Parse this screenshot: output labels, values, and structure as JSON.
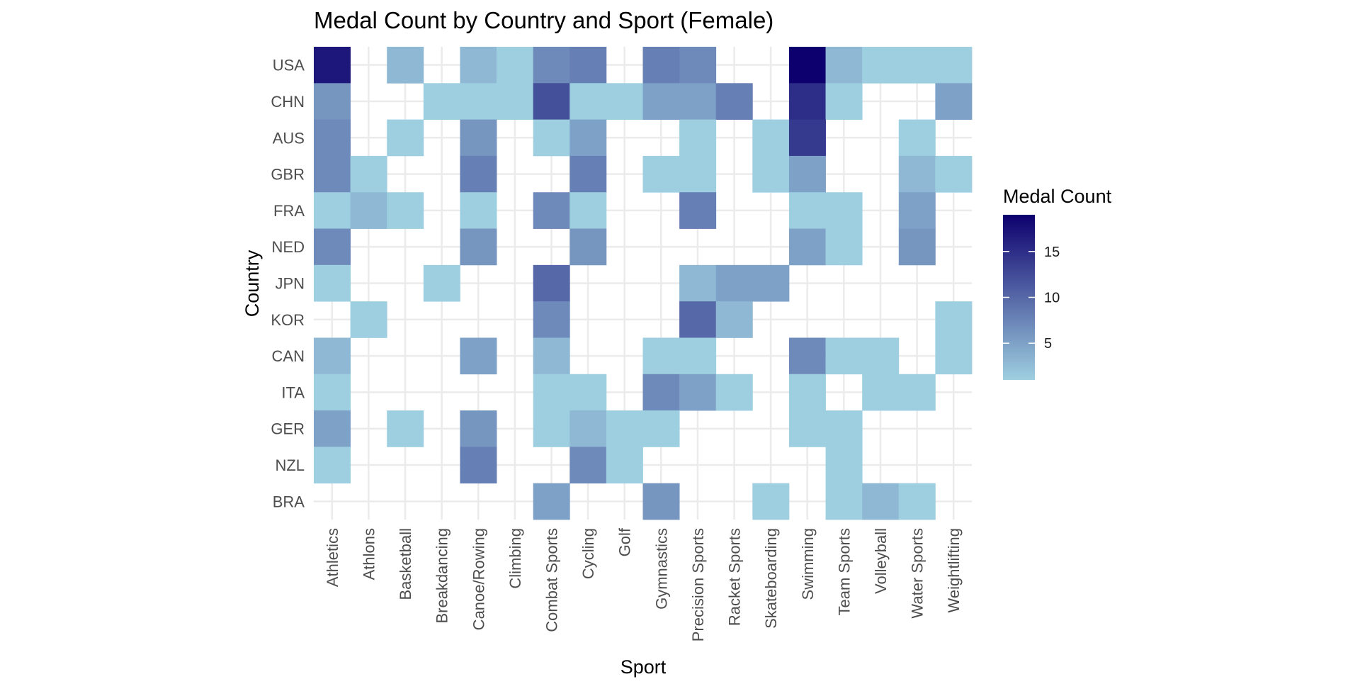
{
  "chart_data": {
    "type": "heatmap",
    "title": "Medal Count by Country and Sport (Female)",
    "xlabel": "Sport",
    "ylabel": "Country",
    "x_categories": [
      "Athletics",
      "Athlons",
      "Basketball",
      "Breakdancing",
      "Canoe/Rowing",
      "Climbing",
      "Combat Sports",
      "Cycling",
      "Golf",
      "Gymnastics",
      "Precision Sports",
      "Racket Sports",
      "Skateboarding",
      "Swimming",
      "Team Sports",
      "Volleyball",
      "Water Sports",
      "Weightlifting"
    ],
    "y_categories": [
      "USA",
      "CHN",
      "AUS",
      "GBR",
      "FRA",
      "NED",
      "JPN",
      "KOR",
      "CAN",
      "ITA",
      "GER",
      "NZL",
      "BRA"
    ],
    "values": [
      [
        17,
        null,
        3,
        null,
        3,
        1,
        7,
        8,
        null,
        8,
        7,
        null,
        null,
        19,
        3,
        1,
        1,
        1
      ],
      [
        6,
        null,
        null,
        1,
        1,
        1,
        12,
        1,
        1,
        5,
        5,
        8,
        null,
        15,
        1,
        null,
        null,
        5
      ],
      [
        7,
        null,
        1,
        null,
        6,
        null,
        1,
        5,
        null,
        null,
        1,
        null,
        1,
        14,
        null,
        null,
        1,
        null
      ],
      [
        7,
        1,
        null,
        null,
        8,
        null,
        null,
        8,
        null,
        1,
        1,
        null,
        1,
        5,
        null,
        null,
        3,
        1
      ],
      [
        1,
        3,
        1,
        null,
        1,
        null,
        7,
        1,
        null,
        null,
        8,
        null,
        null,
        1,
        1,
        null,
        5,
        null
      ],
      [
        7,
        null,
        null,
        null,
        6,
        null,
        null,
        6,
        null,
        null,
        null,
        null,
        null,
        5,
        1,
        null,
        6,
        null
      ],
      [
        1,
        null,
        null,
        1,
        null,
        null,
        10,
        null,
        null,
        null,
        3,
        5,
        5,
        null,
        null,
        null,
        null,
        null
      ],
      [
        null,
        1,
        null,
        null,
        null,
        null,
        7,
        null,
        null,
        null,
        10,
        3,
        null,
        null,
        null,
        null,
        null,
        1
      ],
      [
        3,
        null,
        null,
        null,
        5,
        null,
        3,
        null,
        null,
        1,
        1,
        null,
        null,
        7,
        1,
        1,
        null,
        1
      ],
      [
        1,
        null,
        null,
        null,
        null,
        null,
        1,
        1,
        null,
        7,
        5,
        1,
        null,
        1,
        null,
        1,
        1,
        null
      ],
      [
        5,
        null,
        1,
        null,
        6,
        null,
        1,
        3,
        1,
        1,
        null,
        null,
        null,
        1,
        1,
        null,
        null,
        null
      ],
      [
        1,
        null,
        null,
        null,
        8,
        null,
        null,
        7,
        1,
        null,
        null,
        null,
        null,
        null,
        1,
        null,
        null,
        null
      ],
      [
        null,
        null,
        null,
        null,
        null,
        null,
        5,
        null,
        null,
        6,
        null,
        null,
        1,
        null,
        1,
        3,
        1,
        null
      ]
    ],
    "value_range": [
      1,
      19
    ],
    "legend": {
      "title": "Medal Count",
      "ticks": [
        5,
        10,
        15
      ],
      "placement": "right"
    },
    "colors": {
      "low": "#9ecfe0",
      "high": "#0d006e",
      "grid": "#ebebeb",
      "background": "#ffffff"
    },
    "grid": true
  }
}
